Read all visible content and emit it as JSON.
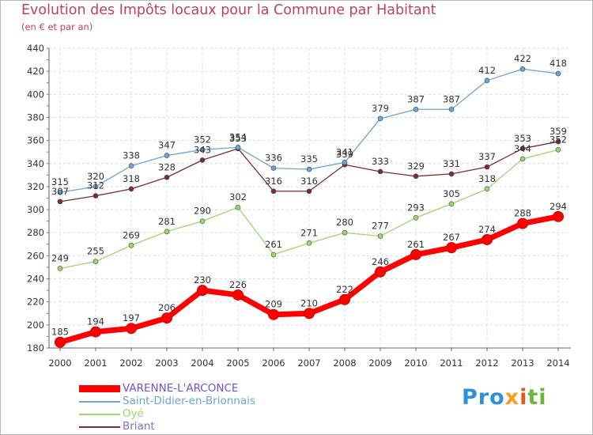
{
  "title": "Evolution des Impôts locaux pour la Commune par Habitant",
  "subtitle": "(en € et par an)",
  "logo": [
    "Pro",
    "x",
    "i",
    "ti"
  ],
  "chart_data": {
    "type": "line",
    "x": [
      "2000",
      "2001",
      "2002",
      "2003",
      "2004",
      "2005",
      "2006",
      "2007",
      "2008",
      "2009",
      "2010",
      "2011",
      "2012",
      "2013",
      "2014"
    ],
    "ylim": [
      180,
      440
    ],
    "yticks": [
      180,
      200,
      220,
      240,
      260,
      280,
      300,
      320,
      340,
      360,
      380,
      400,
      420,
      440
    ],
    "grid": true,
    "legend_position": "bottom-left",
    "series": [
      {
        "name": "VARENNE-L'ARCONCE",
        "color": "#ff0000",
        "values": [
          185,
          194,
          197,
          206,
          230,
          226,
          209,
          210,
          222,
          246,
          261,
          267,
          274,
          288,
          294
        ]
      },
      {
        "name": "Saint-Didier-en-Brionnais",
        "color": "#6aa6d6",
        "values": [
          315,
          320,
          338,
          347,
          352,
          354,
          336,
          335,
          341,
          379,
          387,
          387,
          412,
          422,
          418
        ]
      },
      {
        "name": "Oyé",
        "color": "#9dd86a",
        "values": [
          249,
          255,
          269,
          281,
          290,
          302,
          261,
          271,
          280,
          277,
          293,
          305,
          318,
          344,
          352
        ]
      },
      {
        "name": "Briant",
        "color": "#7a2d35",
        "values": [
          307,
          312,
          318,
          328,
          343,
          353,
          316,
          316,
          339,
          333,
          329,
          331,
          337,
          353,
          359
        ]
      }
    ]
  }
}
